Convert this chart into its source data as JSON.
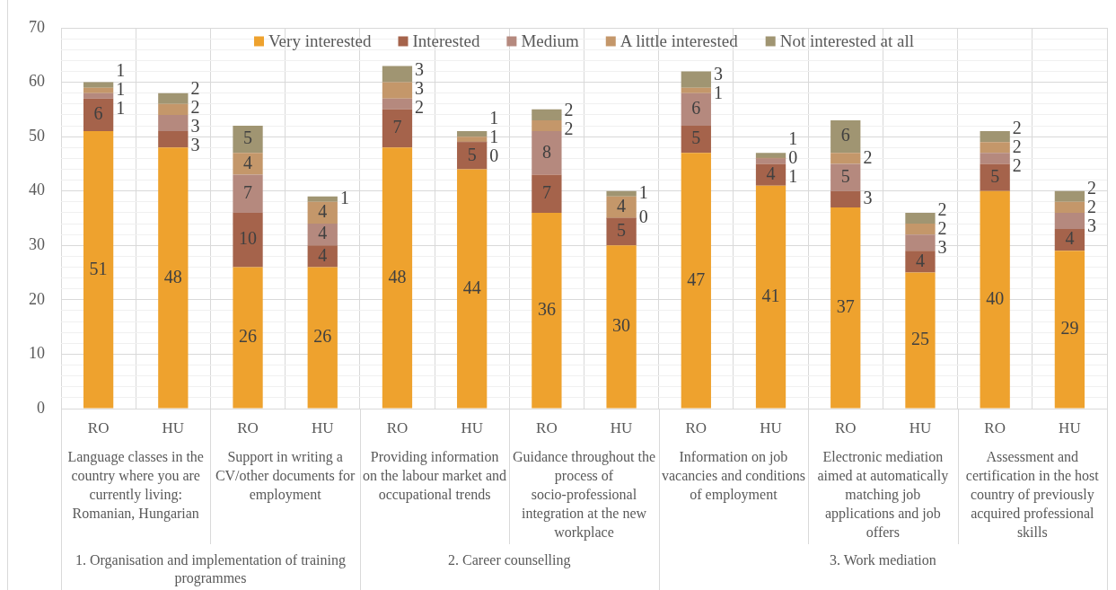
{
  "chart_data": {
    "type": "bar",
    "stacked": true,
    "categories": [
      "RO",
      "HU",
      "RO",
      "HU",
      "RO",
      "HU",
      "RO",
      "HU",
      "RO",
      "HU",
      "RO",
      "HU",
      "RO",
      "HU"
    ],
    "series": [
      {
        "name": "Very interested",
        "color": "#eea22e",
        "values": [
          51,
          48,
          26,
          26,
          48,
          44,
          36,
          30,
          47,
          41,
          37,
          25,
          40,
          29
        ]
      },
      {
        "name": "Interested",
        "color": "#a5634b",
        "values": [
          6,
          3,
          10,
          4,
          7,
          5,
          7,
          5,
          5,
          4,
          3,
          4,
          5,
          4
        ]
      },
      {
        "name": "Medium",
        "color": "#b5897e",
        "values": [
          1,
          3,
          7,
          4,
          2,
          0,
          8,
          0,
          6,
          1,
          5,
          3,
          2,
          3
        ]
      },
      {
        "name": "A little interested",
        "color": "#c4976a",
        "values": [
          1,
          2,
          4,
          4,
          3,
          1,
          2,
          4,
          1,
          0,
          2,
          2,
          2,
          2
        ]
      },
      {
        "name": "Not interested at all",
        "color": "#a09572",
        "values": [
          1,
          2,
          5,
          1,
          3,
          1,
          2,
          1,
          3,
          1,
          6,
          2,
          2,
          2
        ]
      }
    ],
    "ylim": [
      0,
      70
    ],
    "yticks": [
      0,
      {
        "value": 2,
        "label": null
      },
      {
        "value": 4,
        "label": null
      },
      {
        "value": 6,
        "label": null
      },
      {
        "value": 8,
        "label": null
      },
      10,
      {
        "value": 12,
        "label": null
      },
      {
        "value": 14,
        "label": null
      },
      {
        "value": 16,
        "label": null
      },
      {
        "value": 18,
        "label": null
      },
      20,
      {
        "value": 22,
        "label": null
      },
      {
        "value": 24,
        "label": null
      },
      {
        "value": 26,
        "label": null
      },
      {
        "value": 28,
        "label": null
      },
      30,
      {
        "value": 32,
        "label": null
      },
      {
        "value": 34,
        "label": null
      },
      {
        "value": 36,
        "label": null
      },
      {
        "value": 38,
        "label": null
      },
      40,
      {
        "value": 42,
        "label": null
      },
      {
        "value": 44,
        "label": null
      },
      {
        "value": 46,
        "label": null
      },
      {
        "value": 48,
        "label": null
      },
      50,
      {
        "value": 52,
        "label": null
      },
      {
        "value": 54,
        "label": null
      },
      {
        "value": 56,
        "label": null
      },
      {
        "value": 58,
        "label": null
      },
      60,
      {
        "value": 62,
        "label": null
      },
      {
        "value": 64,
        "label": null
      },
      {
        "value": 66,
        "label": null
      },
      {
        "value": 68,
        "label": null
      },
      70
    ],
    "grid": true,
    "legend": "top",
    "data_labels": true,
    "annotations": [
      "Language classes in the country where you are currently living: Romanian, Hungarian",
      "Support in writing a CV/other documents for employment",
      "Providing information on the labour market and occupational trends",
      "Guidance throughout the process of socio-professional integration at the new workplace",
      "Information on job vacancies and conditions of employment",
      "Electronic mediation aimed at automatically matching job applications and job offers",
      "Assessment and certification in the host country of previously acquired professional skills",
      "1. Organisation and implementation of training programmes",
      "2. Career counselling",
      "3. Work mediation"
    ]
  }
}
